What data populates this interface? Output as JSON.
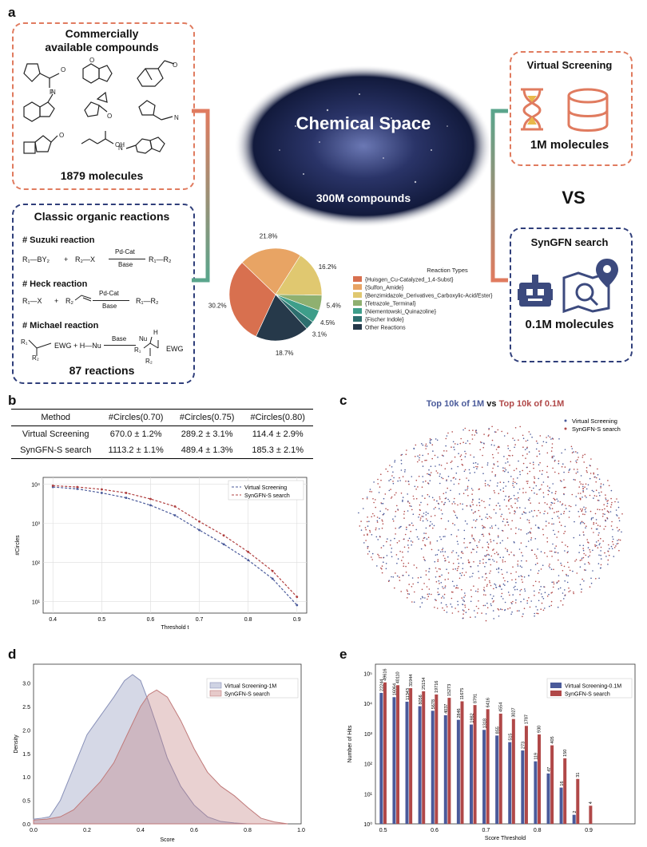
{
  "panel_labels": {
    "a": "a",
    "b": "b",
    "c": "c",
    "d": "d",
    "e": "e"
  },
  "commercial": {
    "title_line1": "Commercially",
    "title_line2": "available compounds",
    "count": "1879 molecules"
  },
  "classic": {
    "title": "Classic organic reactions",
    "suzuki": {
      "name": "# Suzuki reaction",
      "reactant1": "R₁—BY₂",
      "plus": "+",
      "reactant2": "R₂—X",
      "cat": "Pd-Cat",
      "cond": "Base",
      "product": "R₁—R₂"
    },
    "heck": {
      "name": "# Heck reaction",
      "reactant1": "R₁—X",
      "plus": "+",
      "reactant2": "R₂",
      "cat": "Pd-Cat",
      "cond": "Base",
      "product": "R₁—R₂"
    },
    "michael": {
      "name": "# Michael reaction",
      "reactant1": "R₁",
      "ewg": "EWG",
      "r2": "R₂",
      "plus": "+ H—Nu",
      "cond": "Base",
      "nu": "Nu",
      "h": "H",
      "pr1": "R₁",
      "pewg": "EWG",
      "pr2": "R₂"
    },
    "count": "87 reactions"
  },
  "space": {
    "title": "Chemical Space",
    "count": "300M compounds"
  },
  "vs": {
    "text": "VS"
  },
  "virtual": {
    "title": "Virtual Screening",
    "count": "1M molecules"
  },
  "syngfn": {
    "title": "SynGFN search",
    "count": "0.1M molecules"
  },
  "colors": {
    "orange": "#e07b5f",
    "blue": "#2f3e7a",
    "teal": "#5aa58c"
  },
  "pie": {
    "legend_title": "Reaction Types",
    "slices": [
      {
        "label": "{Huisgen_Cu-Catalyzed_1,4-Subst}",
        "value": 30.2,
        "pct": "30.2%",
        "color": "#d8704f"
      },
      {
        "label": "{Sulfon_Amide}",
        "value": 21.8,
        "pct": "21.8%",
        "color": "#e8a464"
      },
      {
        "label": "{Benzimidazole_Derivatives_Carboxylic-Acid/Ester}",
        "value": 16.2,
        "pct": "16.2%",
        "color": "#e0c870"
      },
      {
        "label": "{Tetrazole_Terminal}",
        "value": 5.4,
        "pct": "5.4%",
        "color": "#8fb070"
      },
      {
        "label": "{Niementowski_Quinazoline}",
        "value": 4.5,
        "pct": "4.5%",
        "color": "#3e9e8a"
      },
      {
        "label": "{Fischer Indole}",
        "value": 3.1,
        "pct": "3.1%",
        "color": "#2d6e6e"
      },
      {
        "label": "Other Reactions",
        "value": 18.7,
        "pct": "18.7%",
        "color": "#26394a"
      }
    ]
  },
  "table": {
    "headers": [
      "Method",
      "#Circles(0.70)",
      "#Circles(0.75)",
      "#Circles(0.80)"
    ],
    "rows": [
      [
        "Virtual Screening",
        "670.0 ± 1.2%",
        "289.2 ± 3.1%",
        "114.4 ± 2.9%"
      ],
      [
        "SynGFN-S search",
        "1113.2 ± 1.1%",
        "489.4 ± 1.3%",
        "185.3 ± 2.1%"
      ]
    ]
  },
  "chart_data": [
    {
      "id": "circles",
      "type": "line",
      "xlabel": "Threshold t",
      "ylabel": "#Circles",
      "x": [
        0.4,
        0.45,
        0.5,
        0.55,
        0.6,
        0.65,
        0.7,
        0.75,
        0.8,
        0.85,
        0.9
      ],
      "xticks": [
        "0.4",
        "0.5",
        "0.6",
        "0.7",
        "0.8",
        "0.9"
      ],
      "yticks": [
        "10¹",
        "10²",
        "10³",
        "10⁴"
      ],
      "ylim": [
        5,
        15000
      ],
      "xlim": [
        0.38,
        0.92
      ],
      "series": [
        {
          "name": "Virtual Screening",
          "color": "#4a5a9a",
          "values": [
            8500,
            7600,
            6000,
            4500,
            2900,
            1600,
            670,
            290,
            114,
            38,
            8
          ]
        },
        {
          "name": "SynGFN-S search",
          "color": "#b04040",
          "values": [
            9200,
            8500,
            7400,
            6000,
            4200,
            2700,
            1113,
            489,
            185,
            60,
            13
          ]
        }
      ]
    },
    {
      "id": "tsne",
      "type": "scatter",
      "title_a": "Top 10k of 1M",
      "title_vs": "vs",
      "title_b": "Top 10k of 0.1M",
      "series": [
        {
          "name": "Virtual Screening",
          "color": "#4a5a9a"
        },
        {
          "name": "SynGFN-S search",
          "color": "#b04848"
        }
      ]
    },
    {
      "id": "density",
      "type": "area",
      "xlabel": "Score",
      "ylabel": "Density",
      "xlim": [
        0,
        1
      ],
      "ylim": [
        0,
        3.4
      ],
      "xticks": [
        "0.0",
        "0.2",
        "0.4",
        "0.6",
        "0.8",
        "1.0"
      ],
      "yticks": [
        "0.0",
        "0.5",
        "1.0",
        "1.5",
        "2.0",
        "2.5",
        "3.0"
      ],
      "series": [
        {
          "name": "Virtual Screening-1M",
          "color": "#8890b8",
          "x": [
            0,
            0.03,
            0.06,
            0.1,
            0.15,
            0.2,
            0.25,
            0.3,
            0.34,
            0.37,
            0.4,
            0.43,
            0.46,
            0.5,
            0.55,
            0.6,
            0.65,
            0.7,
            0.75,
            0.8
          ],
          "y": [
            0.1,
            0.12,
            0.15,
            0.5,
            1.2,
            1.9,
            2.3,
            2.7,
            3.05,
            3.18,
            3.05,
            2.6,
            2.1,
            1.4,
            0.8,
            0.4,
            0.15,
            0.05,
            0.02,
            0.0
          ]
        },
        {
          "name": "SynGFN-S search",
          "color": "#c07a7a",
          "x": [
            0,
            0.05,
            0.1,
            0.15,
            0.2,
            0.25,
            0.3,
            0.35,
            0.4,
            0.43,
            0.46,
            0.5,
            0.55,
            0.6,
            0.65,
            0.7,
            0.75,
            0.8,
            0.85,
            0.9,
            0.95
          ],
          "y": [
            0.08,
            0.1,
            0.15,
            0.3,
            0.6,
            0.9,
            1.3,
            1.9,
            2.5,
            2.75,
            2.85,
            2.7,
            2.2,
            1.6,
            1.1,
            0.8,
            0.6,
            0.35,
            0.12,
            0.04,
            0.0
          ]
        }
      ]
    },
    {
      "id": "hits",
      "type": "bar",
      "xlabel": "Score Threshold",
      "ylabel": "Number of Hits",
      "categories": [
        0.5,
        0.525,
        0.55,
        0.575,
        0.6,
        0.625,
        0.65,
        0.675,
        0.7,
        0.725,
        0.75,
        0.775,
        0.8,
        0.825,
        0.85,
        0.875,
        0.9,
        0.925,
        0.95,
        0.975
      ],
      "xticks": [
        "0.5",
        "0.6",
        "0.7",
        "0.8",
        "0.9"
      ],
      "yticks": [
        "10⁰",
        "10¹",
        "10²",
        "10³",
        "10⁴",
        "10⁵"
      ],
      "series": [
        {
          "name": "Virtual Screening-0.1M",
          "color": "#4a5a9a",
          "values": [
            22244,
            16064,
            11343,
            8056,
            5678,
            4037,
            2846,
            1982,
            1318,
            855,
            515,
            273,
            119,
            47,
            16,
            2,
            null,
            null,
            null,
            null
          ]
        },
        {
          "name": "SynGFN-S search",
          "color": "#b04848",
          "values": [
            49616,
            40110,
            31944,
            25154,
            19716,
            15273,
            11675,
            8791,
            6416,
            4554,
            3027,
            1787,
            930,
            405,
            150,
            31,
            4,
            null,
            null,
            null
          ]
        }
      ],
      "labels_blue": [
        "22244",
        "16064",
        "11343",
        "8056",
        "5678",
        "4037",
        "2846",
        "1982",
        "1318",
        "855",
        "515",
        "273",
        "119",
        "47",
        "16",
        "2"
      ],
      "labels_red": [
        "49616",
        "40110",
        "31944",
        "25154",
        "19716",
        "15273",
        "11675",
        "8791",
        "6416",
        "4554",
        "3027",
        "1787",
        "930",
        "405",
        "150",
        "31",
        "4"
      ]
    }
  ]
}
